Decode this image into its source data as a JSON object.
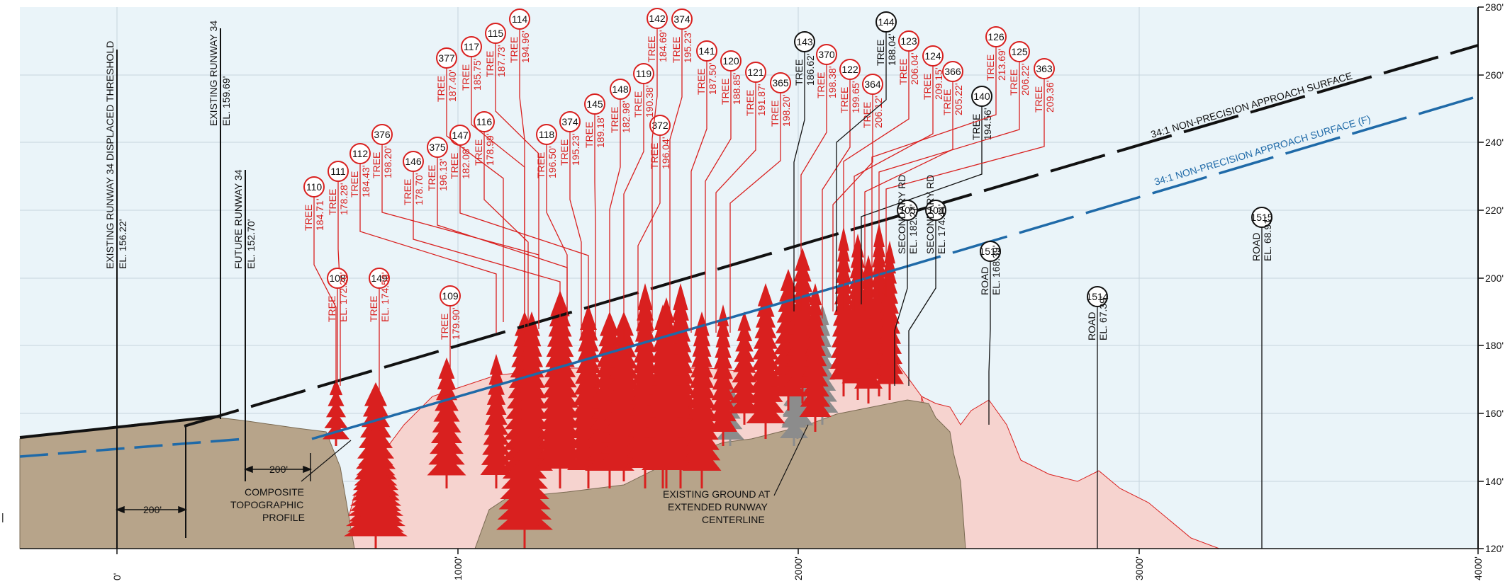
{
  "axis": {
    "x_ticks": [
      "0'",
      "1000'",
      "2000'",
      "3000'",
      "4000'"
    ],
    "y_ticks": [
      "120'",
      "140'",
      "160'",
      "180'",
      "200'",
      "220'",
      "240'",
      "260'",
      "280'"
    ]
  },
  "colors": {
    "sky": "#eaf4f9",
    "ground": "#b7a48a",
    "overlay": "#f7d6d3",
    "tree_red": "#d9201f",
    "tree_gray": "#8c8c8c",
    "approach_black": "#111111",
    "approach_blue": "#1f6aa8",
    "grid": "#c8d6de"
  },
  "surfaces": {
    "black_label": "34:1 NON-PRECISION APPROACH SURFACE",
    "blue_label": "34:1 NON-PRECISION APPROACH SURFACE (F)"
  },
  "runway_labels": [
    {
      "name": "EXISTING RUNWAY 34 DISPLACED THRESHOLD",
      "elev": "EL. 156.22'"
    },
    {
      "name": "EXISTING RUNWAY 34",
      "elev": "EL. 159.69'"
    },
    {
      "name": "FUTURE RUNWAY 34",
      "elev": "EL. 152.70'"
    }
  ],
  "dimensions": [
    "200'",
    "200'"
  ],
  "notes": {
    "composite": [
      "COMPOSITE",
      "TOPOGRAPHIC",
      "PROFILE"
    ],
    "existing": [
      "EXISTING GROUND AT",
      "EXTENDED RUNWAY",
      "CENTERLINE"
    ]
  },
  "obstructions": [
    {
      "id": "110",
      "type": "TREE",
      "elev": "184.71'",
      "color": "red"
    },
    {
      "id": "111",
      "type": "TREE",
      "elev": "178.28'",
      "color": "red"
    },
    {
      "id": "112",
      "type": "TREE",
      "elev": "184.43'",
      "color": "red"
    },
    {
      "id": "376",
      "type": "TREE",
      "elev": "198.20'",
      "color": "red"
    },
    {
      "id": "146",
      "type": "TREE",
      "elev": "178.70'",
      "color": "red"
    },
    {
      "id": "375",
      "type": "TREE",
      "elev": "196.13'",
      "color": "red"
    },
    {
      "id": "147",
      "type": "TREE",
      "elev": "182.08'",
      "color": "red"
    },
    {
      "id": "377",
      "type": "TREE",
      "elev": "187.40'",
      "color": "red"
    },
    {
      "id": "117",
      "type": "TREE",
      "elev": "185.75'",
      "color": "red"
    },
    {
      "id": "116",
      "type": "TREE",
      "elev": "178.99'",
      "color": "red"
    },
    {
      "id": "115",
      "type": "TREE",
      "elev": "187.73'",
      "color": "red"
    },
    {
      "id": "114",
      "type": "TREE",
      "elev": "194.96'",
      "color": "red"
    },
    {
      "id": "118",
      "type": "TREE",
      "elev": "196.50'",
      "color": "red"
    },
    {
      "id": "374",
      "type": "TREE",
      "elev": "195.23'",
      "color": "red"
    },
    {
      "id": "145",
      "type": "TREE",
      "elev": "189.18'",
      "color": "red"
    },
    {
      "id": "148",
      "type": "TREE",
      "elev": "182.98'",
      "color": "red"
    },
    {
      "id": "119",
      "type": "TREE",
      "elev": "190.38'",
      "color": "red"
    },
    {
      "id": "372",
      "type": "TREE",
      "elev": "196.04'",
      "color": "red"
    },
    {
      "id": "142",
      "type": "TREE",
      "elev": "184.69'",
      "color": "red"
    },
    {
      "id": "374",
      "type": "TREE",
      "elev": "195.23'",
      "color": "red"
    },
    {
      "id": "141",
      "type": "TREE",
      "elev": "187.50'",
      "color": "red"
    },
    {
      "id": "120",
      "type": "TREE",
      "elev": "188.85'",
      "color": "red"
    },
    {
      "id": "121",
      "type": "TREE",
      "elev": "191.87'",
      "color": "red"
    },
    {
      "id": "365",
      "type": "TREE",
      "elev": "198.20'",
      "color": "red"
    },
    {
      "id": "143",
      "type": "TREE",
      "elev": "186.62'",
      "color": "black"
    },
    {
      "id": "370",
      "type": "TREE",
      "elev": "198.38'",
      "color": "red"
    },
    {
      "id": "122",
      "type": "TREE",
      "elev": "199.65'",
      "color": "red"
    },
    {
      "id": "364",
      "type": "TREE",
      "elev": "206.12'",
      "color": "red"
    },
    {
      "id": "144",
      "type": "TREE",
      "elev": "188.04'",
      "color": "black"
    },
    {
      "id": "123",
      "type": "TREE",
      "elev": "206.04'",
      "color": "red"
    },
    {
      "id": "124",
      "type": "TREE",
      "elev": "209.15'",
      "color": "red"
    },
    {
      "id": "366",
      "type": "TREE",
      "elev": "205.22'",
      "color": "red"
    },
    {
      "id": "140",
      "type": "TREE",
      "elev": "194.56'",
      "color": "black"
    },
    {
      "id": "126",
      "type": "TREE",
      "elev": "213.69'",
      "color": "red"
    },
    {
      "id": "125",
      "type": "TREE",
      "elev": "206.22'",
      "color": "red"
    },
    {
      "id": "363",
      "type": "TREE",
      "elev": "209.36'",
      "color": "red"
    },
    {
      "id": "108",
      "type": "TREE",
      "elev": "EL. 172.20'",
      "color": "red"
    },
    {
      "id": "149",
      "type": "TREE",
      "elev": "EL. 174.53'",
      "color": "red"
    },
    {
      "id": "109",
      "type": "TREE",
      "elev": "179.90'",
      "color": "red"
    },
    {
      "id": "105",
      "type": "SECONDARY RD",
      "elev": "EL. 182.27'",
      "color": "black"
    },
    {
      "id": "104",
      "type": "SECONDARY RD",
      "elev": "EL. 174.44'",
      "color": "black"
    },
    {
      "id": "1513",
      "type": "ROAD",
      "elev": "EL. 168.39'",
      "color": "black"
    },
    {
      "id": "1514",
      "type": "ROAD",
      "elev": "EL. 67.39'",
      "color": "black"
    },
    {
      "id": "1515",
      "type": "ROAD",
      "elev": "EL. 68.91'",
      "color": "black"
    }
  ]
}
